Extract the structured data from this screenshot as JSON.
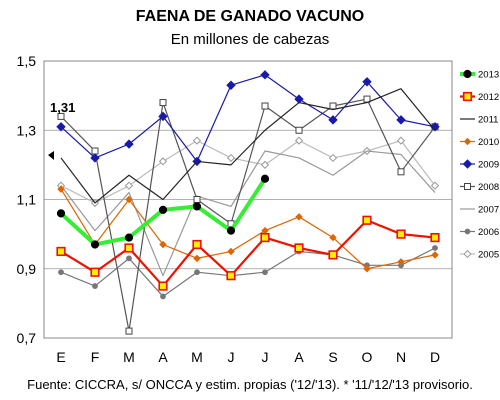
{
  "chart_data": {
    "type": "line",
    "title": "FAENA DE GANADO VACUNO",
    "subtitle": "En millones de cabezas",
    "source_note": "Fuente: CICCRA, s/ ONCCA y estim. propias ('12/'13). * '11/'12/'13 provisorio.",
    "categories": [
      "E",
      "F",
      "M",
      "A",
      "M",
      "J",
      "J",
      "A",
      "S",
      "O",
      "N",
      "D"
    ],
    "ylim": [
      0.7,
      1.5
    ],
    "yticks": [
      "0,7",
      "0,9",
      "1,1",
      "1,3",
      "1,5"
    ],
    "annotation": "1,31",
    "legend_position": "right",
    "grid": true,
    "series": [
      {
        "name": "2013",
        "color": "#33ee33",
        "marker": "filled-circle-black",
        "values": [
          1.06,
          0.97,
          0.99,
          1.07,
          1.08,
          1.01,
          1.16,
          null,
          null,
          null,
          null,
          null
        ]
      },
      {
        "name": "2012",
        "color": "#ee1100",
        "marker": "square-yellow",
        "values": [
          0.95,
          0.89,
          0.96,
          0.85,
          0.97,
          0.88,
          0.99,
          0.96,
          0.94,
          1.04,
          1.0,
          0.99
        ]
      },
      {
        "name": "2011",
        "color": "#222222",
        "marker": "none",
        "values": [
          1.22,
          1.09,
          1.17,
          1.1,
          1.21,
          1.2,
          1.3,
          1.38,
          1.36,
          1.38,
          1.42,
          1.3
        ]
      },
      {
        "name": "2010",
        "color": "#dd6600",
        "marker": "small-diamond-orange",
        "values": [
          1.13,
          0.97,
          1.1,
          0.97,
          0.93,
          0.95,
          1.01,
          1.05,
          0.99,
          0.9,
          0.92,
          0.94
        ]
      },
      {
        "name": "2009",
        "color": "#1a1aaa",
        "marker": "diamond-blue",
        "values": [
          1.31,
          1.22,
          1.26,
          1.34,
          1.21,
          1.43,
          1.46,
          1.39,
          1.33,
          1.44,
          1.33,
          1.31
        ]
      },
      {
        "name": "2008",
        "color": "#555555",
        "marker": "open-square",
        "values": [
          1.34,
          1.24,
          0.72,
          1.38,
          1.1,
          1.03,
          1.37,
          1.3,
          1.37,
          1.39,
          1.18,
          1.31
        ]
      },
      {
        "name": "2007",
        "color": "#999999",
        "marker": "none",
        "values": [
          1.14,
          1.01,
          1.12,
          0.88,
          1.11,
          1.08,
          1.24,
          1.22,
          1.17,
          1.24,
          1.23,
          1.12
        ]
      },
      {
        "name": "2006",
        "color": "#777777",
        "marker": "small-circle-gray",
        "values": [
          0.89,
          0.85,
          0.93,
          0.82,
          0.89,
          0.88,
          0.89,
          0.95,
          0.94,
          0.91,
          0.91,
          0.96
        ]
      },
      {
        "name": "2005",
        "color": "#bbbbbb",
        "marker": "open-diamond",
        "values": [
          1.14,
          1.09,
          1.14,
          1.21,
          1.27,
          1.22,
          1.2,
          1.27,
          1.22,
          1.24,
          1.27,
          1.14
        ]
      }
    ]
  }
}
